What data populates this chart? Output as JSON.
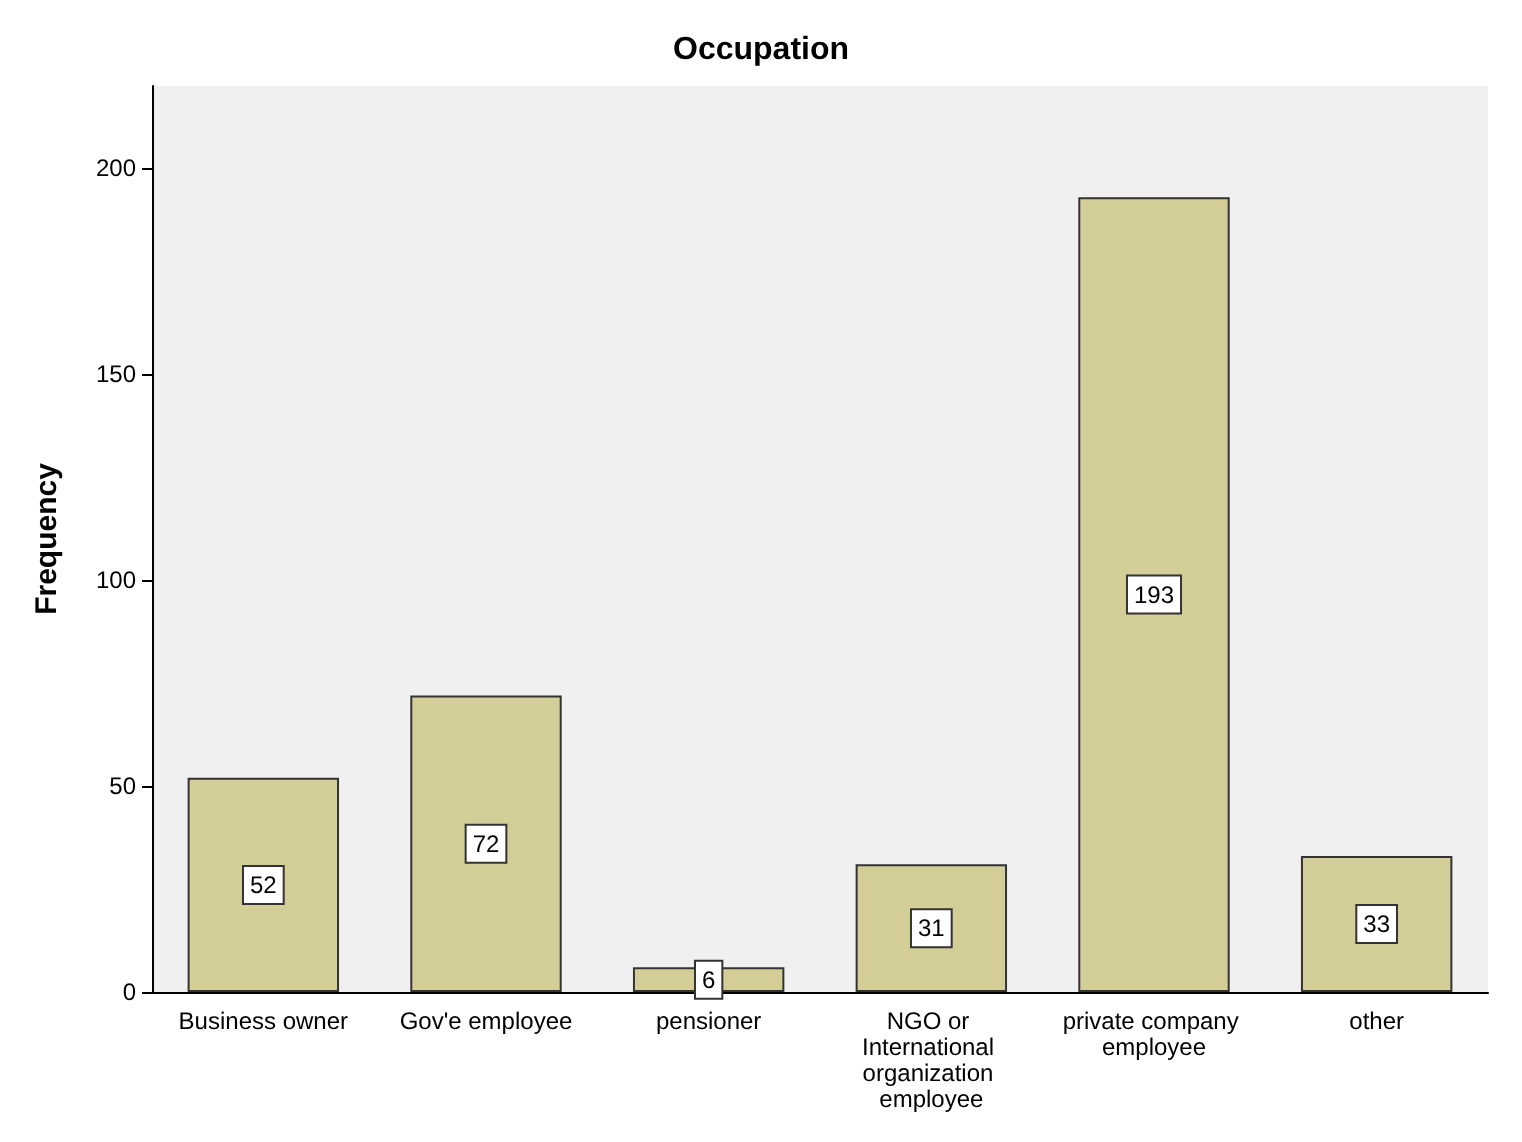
{
  "chart_data": {
    "type": "bar",
    "title": "Occupation",
    "ylabel": "Frequency",
    "categories": [
      "Business owner",
      "Gov'e employee",
      "pensioner",
      "NGO or International organization employee",
      "private company employee",
      "other"
    ],
    "values": [
      52,
      72,
      6,
      31,
      193,
      33
    ],
    "color": "#d3ce97",
    "ylim": [
      0,
      220
    ],
    "yticks": [
      0,
      50,
      100,
      150,
      200
    ],
    "grid": false,
    "data_labels": true
  }
}
